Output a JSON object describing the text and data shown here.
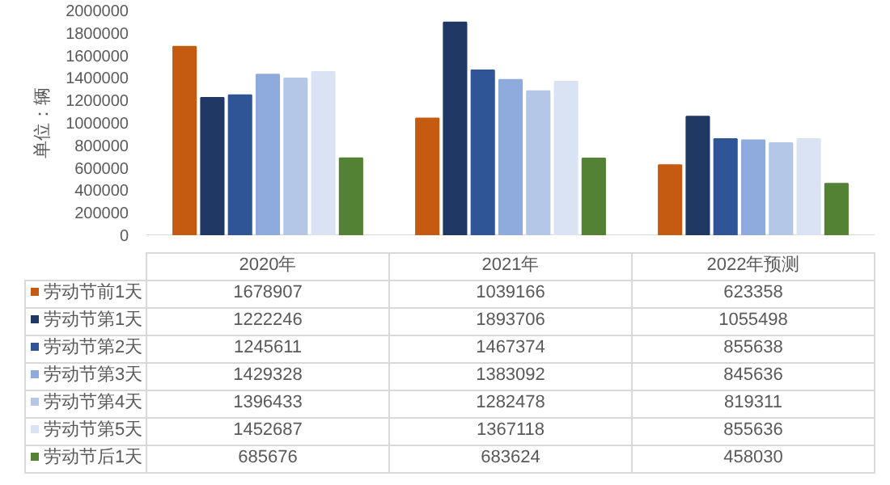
{
  "chart_data": {
    "type": "bar",
    "ylabel": "单位：辆",
    "categories": [
      "2020年",
      "2021年",
      "2022年预测"
    ],
    "series": [
      {
        "name": "劳动节前1天",
        "color": "#c55a11",
        "values": [
          1678907,
          1039166,
          623358
        ]
      },
      {
        "name": "劳动节第1天",
        "color": "#1f3864",
        "values": [
          1222246,
          1893706,
          1055498
        ]
      },
      {
        "name": "劳动节第2天",
        "color": "#2f5597",
        "values": [
          1245611,
          1467374,
          855638
        ]
      },
      {
        "name": "劳动节第3天",
        "color": "#8faadc",
        "values": [
          1429328,
          1383092,
          845636
        ]
      },
      {
        "name": "劳动节第4天",
        "color": "#b4c7e7",
        "values": [
          1396433,
          1282478,
          819311
        ]
      },
      {
        "name": "劳动节第5天",
        "color": "#dae3f3",
        "values": [
          1452687,
          1367118,
          855636
        ]
      },
      {
        "name": "劳动节后1天",
        "color": "#548235",
        "values": [
          685676,
          683624,
          458030
        ]
      }
    ],
    "ylim": [
      0,
      2000000
    ],
    "yticks": [
      0,
      200000,
      400000,
      600000,
      800000,
      1000000,
      1200000,
      1400000,
      1600000,
      1800000,
      2000000
    ],
    "grid": false,
    "legend": "bottom",
    "data_labels": true
  }
}
